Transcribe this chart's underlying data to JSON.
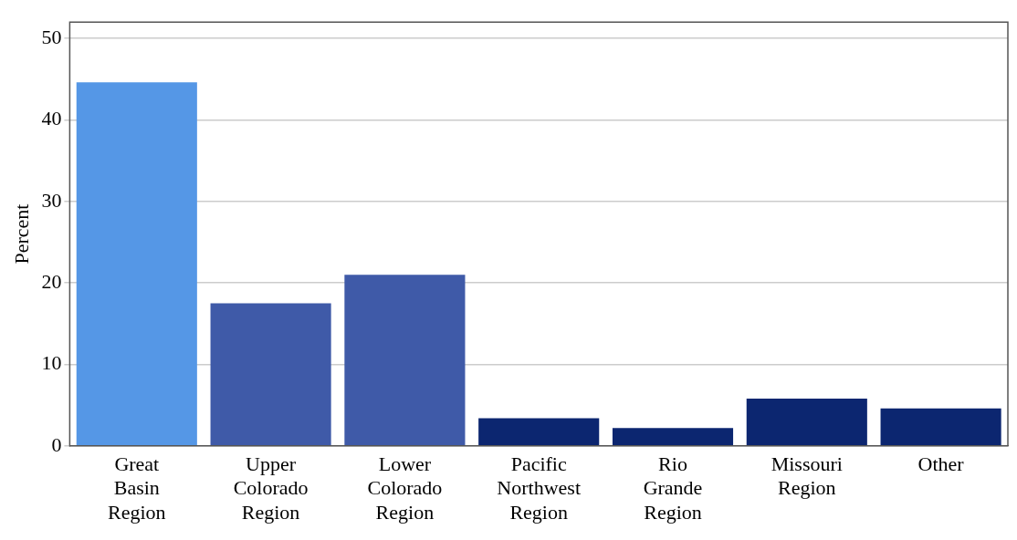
{
  "chart_data": {
    "type": "bar",
    "ylabel": "Percent",
    "categories": [
      "Great Basin Region",
      "Upper Colorado Region",
      "Lower Colorado Region",
      "Pacific Northwest Region",
      "Rio Grande Region",
      "Missouri Region",
      "Other"
    ],
    "values": [
      44.6,
      17.5,
      21.0,
      3.4,
      2.2,
      5.8,
      4.6
    ],
    "colors": [
      "#5597e6",
      "#3f5aa8",
      "#3f5aa8",
      "#0c2670",
      "#0c2670",
      "#0c2670",
      "#0c2670"
    ],
    "ylim": [
      0,
      52
    ],
    "yticks": [
      0,
      10,
      20,
      30,
      40,
      50
    ],
    "grid": "y",
    "legend": false
  }
}
